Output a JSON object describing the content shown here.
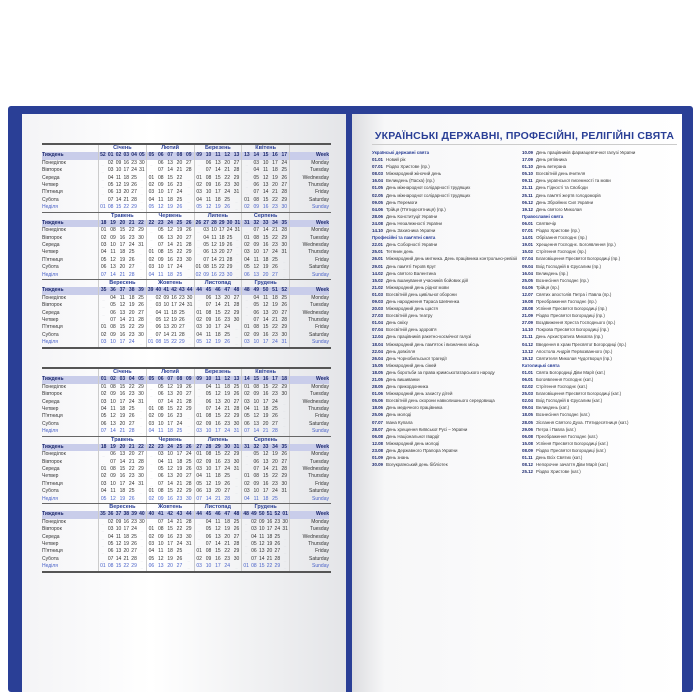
{
  "labels": {
    "week_ua": "Тиждень",
    "week_en": "Week",
    "days_ua": [
      "Понеділок",
      "Вівторок",
      "Середа",
      "Четвер",
      "П'ятниця",
      "Субота",
      "Неділя"
    ],
    "days_en": [
      "Monday",
      "Tuesday",
      "Wednesday",
      "Thursday",
      "Friday",
      "Saturday",
      "Sunday"
    ]
  },
  "colors": {
    "cover": "#2a3f96",
    "accent": "#2a3f96",
    "week_row": "#c9cdea",
    "sunday": "#4a62c8"
  },
  "calendars": [
    {
      "months": [
        {
          "name": "Січень",
          "weeks": "52 01 02 03 04 05",
          "rows": [
            "_ 02 09 16 23 30",
            "_ 03 10 17 24 31",
            "_ 04 11 18 25 _",
            "_ 05 12 19 26 _",
            "_ 06 13 20 27 _",
            "_ 07 14 21 28 _",
            "01 08 15 22 29 _"
          ]
        },
        {
          "name": "Лютий",
          "weeks": "05 06 07 08 09",
          "rows": [
            "_ 06 13 20 27",
            "_ 07 14 21 28",
            "01 08 15 22 _",
            "02 09 16 23 _",
            "03 10 17 24 _",
            "04 11 18 25 _",
            "05 12 19 26 _"
          ]
        },
        {
          "name": "Березень",
          "weeks": "09 10 11 12 13",
          "rows": [
            "_ 06 13 20 27",
            "_ 07 14 21 28",
            "01 08 15 22 29",
            "02 09 16 23 30",
            "03 10 17 24 31",
            "04 11 18 25 _",
            "05 12 19 26 _"
          ]
        },
        {
          "name": "Квітень",
          "weeks": "13 14 15 16 17",
          "rows": [
            "_ 03 10 17 24",
            "_ 04 11 18 25",
            "_ 05 12 19 26",
            "_ 06 13 20 27",
            "_ 07 14 21 28",
            "01 08 15 22 29",
            "02 09 16 23 30"
          ]
        },
        {
          "name": "Травень",
          "weeks": "18 19 20 21 22",
          "rows": [
            "01 08 15 22 29",
            "02 09 16 23 30",
            "03 10 17 24 31",
            "04 11 18 25 _",
            "05 12 19 26 _",
            "06 13 20 27 _",
            "07 14 21 28 _"
          ]
        },
        {
          "name": "Червень",
          "weeks": "22 23 24 25 26",
          "rows": [
            "_ 05 12 19 26",
            "_ 06 13 20 27",
            "_ 07 14 21 28",
            "01 08 15 22 29",
            "02 09 16 23 30",
            "03 10 17 24 _",
            "04 11 18 25 _"
          ]
        },
        {
          "name": "Липень",
          "weeks": "26 27 28 29 30 31",
          "rows": [
            "_ 03 10 17 24 31",
            "_ 04 11 18 25 _",
            "_ 05 12 19 26 _",
            "_ 06 13 20 27 _",
            "_ 07 14 21 28 _",
            "01 08 15 22 29 _",
            "02 09 16 23 30 _"
          ]
        },
        {
          "name": "Серпень",
          "weeks": "31 32 33 34 35",
          "rows": [
            "_ 07 14 21 28",
            "01 08 15 22 29",
            "02 09 16 23 30",
            "03 10 17 24 31",
            "04 11 18 25 _",
            "05 12 19 26 _",
            "06 13 20 27 _"
          ]
        },
        {
          "name": "Вересень",
          "weeks": "35 36 37 38 39",
          "rows": [
            "_ 04 11 18 25",
            "_ 05 12 19 26",
            "_ 06 13 20 27",
            "_ 07 14 21 28",
            "01 08 15 22 29",
            "02 09 16 23 30",
            "03 10 17 24 _"
          ]
        },
        {
          "name": "Жовтень",
          "weeks": "39 40 41 42 43 44",
          "rows": [
            "_ 02 09 16 23 30",
            "_ 03 10 17 24 31",
            "_ 04 11 18 25 _",
            "_ 05 12 19 26 _",
            "_ 06 13 20 27 _",
            "_ 07 14 21 28 _",
            "01 08 15 22 29 _"
          ]
        },
        {
          "name": "Листопад",
          "weeks": "44 45 46 47 48",
          "rows": [
            "_ 06 13 20 27",
            "_ 07 14 21 28",
            "01 08 15 22 29",
            "02 09 16 23 30",
            "03 10 17 24 _",
            "04 11 18 25 _",
            "05 12 19 26 _"
          ]
        },
        {
          "name": "Грудень",
          "weeks": "48 49 50 51 52",
          "rows": [
            "_ 04 11 18 25",
            "_ 05 12 19 26",
            "_ 06 13 20 27",
            "_ 07 14 21 28",
            "01 08 15 22 29",
            "02 09 16 23 30",
            "03 10 17 24 31"
          ]
        }
      ]
    },
    {
      "months": [
        {
          "name": "Січень",
          "weeks": "01 02 03 04 05",
          "rows": [
            "01 08 15 22 29",
            "02 09 16 23 30",
            "03 10 17 24 31",
            "04 11 18 25 _",
            "05 12 19 26 _",
            "06 13 20 27 _",
            "07 14 21 28 _"
          ]
        },
        {
          "name": "Лютий",
          "weeks": "05 06 07 08 09",
          "rows": [
            "_ 05 12 19 26",
            "_ 06 13 20 27",
            "_ 07 14 21 28",
            "01 08 15 22 29",
            "02 09 16 23 _",
            "03 10 17 24 _",
            "04 11 18 25 _"
          ]
        },
        {
          "name": "Березень",
          "weeks": "09 10 11 12 13",
          "rows": [
            "_ 04 11 18 25",
            "_ 05 12 19 26",
            "_ 06 13 20 27",
            "_ 07 14 21 28",
            "01 08 15 22 29",
            "02 09 16 23 30",
            "03 10 17 24 31"
          ]
        },
        {
          "name": "Квітень",
          "weeks": "14 15 16 17 18",
          "rows": [
            "01 08 15 22 29",
            "02 09 16 23 30",
            "03 10 17 24 _",
            "04 11 18 25 _",
            "05 12 19 26 _",
            "06 13 20 27 _",
            "07 14 21 28 _"
          ]
        },
        {
          "name": "Травень",
          "weeks": "18 19 20 21 22",
          "rows": [
            "_ 06 13 20 27",
            "_ 07 14 21 28",
            "01 08 15 22 29",
            "02 09 16 23 30",
            "03 10 17 24 31",
            "04 11 18 25 _",
            "05 12 19 26 _"
          ]
        },
        {
          "name": "Червень",
          "weeks": "22 23 24 25 26",
          "rows": [
            "_ 03 10 17 24",
            "_ 04 11 18 25",
            "_ 05 12 19 26",
            "_ 06 13 20 27",
            "_ 07 14 21 28",
            "01 08 15 22 29",
            "02 09 16 23 30"
          ]
        },
        {
          "name": "Липень",
          "weeks": "27 28 29 30 31",
          "rows": [
            "01 08 15 22 29",
            "02 09 16 23 30",
            "03 10 17 24 31",
            "04 11 18 25 _",
            "05 12 19 26 _",
            "06 13 20 27 _",
            "07 14 21 28 _"
          ]
        },
        {
          "name": "Серпень",
          "weeks": "31 32 33 34 35",
          "rows": [
            "_ 05 12 19 26",
            "_ 06 13 20 27",
            "_ 07 14 21 28",
            "01 08 15 22 29",
            "02 09 16 23 30",
            "03 10 17 24 31",
            "04 11 18 25 _"
          ]
        },
        {
          "name": "Вересень",
          "weeks": "35 36 37 38 39 40",
          "rows": [
            "_ 02 09 16 23 30",
            "_ 03 10 17 24 _",
            "_ 04 11 18 25 _",
            "_ 05 12 19 26 _",
            "_ 06 13 20 27 _",
            "_ 07 14 21 28 _",
            "01 08 15 22 29 _"
          ]
        },
        {
          "name": "Жовтень",
          "weeks": "40 41 42 43 44",
          "rows": [
            "_ 07 14 21 28",
            "01 08 15 22 29",
            "02 09 16 23 30",
            "03 10 17 24 31",
            "04 11 18 25 _",
            "05 12 19 26 _",
            "06 13 20 27 _"
          ]
        },
        {
          "name": "Листопад",
          "weeks": "44 45 46 47 48",
          "rows": [
            "_ 04 11 18 25",
            "_ 05 12 19 26",
            "_ 06 13 20 27",
            "_ 07 14 21 28",
            "01 08 15 22 29",
            "02 09 16 23 30",
            "03 10 17 24 _"
          ]
        },
        {
          "name": "Грудень",
          "weeks": "48 49 50 51 52 01",
          "rows": [
            "_ 02 09 16 23 30",
            "_ 03 10 17 24 31",
            "_ 04 11 18 25 _",
            "_ 05 12 19 26 _",
            "_ 06 13 20 27 _",
            "_ 07 14 21 28 _",
            "01 08 15 22 29 _"
          ]
        }
      ]
    }
  ],
  "holidays": {
    "title": "УКРАЇНСЬКІ ДЕРЖАВНІ, ПРОФЕСІЙНІ, РЕЛІГІЙНІ СВЯТА",
    "columns": [
      [
        {
          "section": "Українські державні свята"
        },
        {
          "d": "01.01",
          "t": "Новий рік"
        },
        {
          "d": "07.01",
          "t": "Різдво Христове (пр.)"
        },
        {
          "d": "08.03",
          "t": "Міжнародний жіночий день"
        },
        {
          "d": "16.04",
          "t": "Великдень (Пасха) (пр.)"
        },
        {
          "d": "01.05",
          "t": "День міжнародної солідарності трудящих"
        },
        {
          "d": "02.05",
          "t": "День міжнародної солідарності трудящих"
        },
        {
          "d": "09.05",
          "t": "День Перемоги"
        },
        {
          "d": "04.06",
          "t": "Трійця (П'ятидесятниця) (пр.)"
        },
        {
          "d": "28.06",
          "t": "День Конституції України"
        },
        {
          "d": "24.08",
          "t": "День Незалежності України"
        },
        {
          "d": "14.10",
          "t": "День Захисника України"
        },
        {
          "section": "Професійні та пам'ятні свята"
        },
        {
          "d": "22.01",
          "t": "День Соборності України"
        },
        {
          "d": "25.01",
          "t": "Тетянин день"
        },
        {
          "d": "26.01",
          "t": "Міжнародний день митника. День працівника контрольно-ревізійної служби України"
        },
        {
          "d": "29.01",
          "t": "День пам'яті Героїв Крут"
        },
        {
          "d": "14.02",
          "t": "День святого Валентина"
        },
        {
          "d": "15.02",
          "t": "День вшанування учасників бойових дій"
        },
        {
          "d": "21.02",
          "t": "Міжнародний день рідної мови"
        },
        {
          "d": "01.03",
          "t": "Всесвітній день цивільної оборони"
        },
        {
          "d": "09.03",
          "t": "День народження Тараса Шевченка"
        },
        {
          "d": "20.03",
          "t": "Міжнародний день щастя"
        },
        {
          "d": "27.03",
          "t": "Всесвітній день театру"
        },
        {
          "d": "01.04",
          "t": "День сміху"
        },
        {
          "d": "07.04",
          "t": "Всесвітній день здоров'я"
        },
        {
          "d": "12.04",
          "t": "День працівників ракетно-космічної галузі"
        },
        {
          "d": "18.04",
          "t": "Міжнародний день пам'яток і визначних місць"
        },
        {
          "d": "22.04",
          "t": "День довкілля"
        },
        {
          "d": "26.04",
          "t": "День Чорнобильської трагедії"
        },
        {
          "d": "15.05",
          "t": "Міжнародний день сімей"
        },
        {
          "d": "18.05",
          "t": "День боротьби за права кримськотатарського народу"
        },
        {
          "d": "21.05",
          "t": "День вишиванки"
        },
        {
          "d": "28.05",
          "t": "День прикордонника"
        },
        {
          "d": "01.06",
          "t": "Міжнародний день захисту дітей"
        },
        {
          "d": "05.06",
          "t": "Всесвітній день охорони навколишнього середовища"
        },
        {
          "d": "18.06",
          "t": "День медичного працівника"
        },
        {
          "d": "25.06",
          "t": "День молоді"
        },
        {
          "d": "07.07",
          "t": "Івана Купала"
        },
        {
          "d": "28.07",
          "t": "День хрещення Київської Русі – України"
        },
        {
          "d": "06.08",
          "t": "День Національної гвардії"
        },
        {
          "d": "12.08",
          "t": "Міжнародний день молоді"
        },
        {
          "d": "23.08",
          "t": "День Державного Прапора України"
        },
        {
          "d": "01.09",
          "t": "День знань"
        },
        {
          "d": "30.09",
          "t": "Всеукраїнський день бібліотек"
        }
      ],
      [
        {
          "d": "10.09",
          "t": "День працівників фармацевтичної галузі України"
        },
        {
          "d": "17.09",
          "t": "День рятівника"
        },
        {
          "d": "01.10",
          "t": "День ветерана"
        },
        {
          "d": "05.10",
          "t": "Всесвітній день вчителя"
        },
        {
          "d": "09.11",
          "t": "День української писемності та мови"
        },
        {
          "d": "21.11",
          "t": "День Гідності та Свободи"
        },
        {
          "d": "25.11",
          "t": "День пам'яті жертв голодоморів"
        },
        {
          "d": "06.12",
          "t": "День Збройних Сил України"
        },
        {
          "d": "19.12",
          "t": "День святого Миколая"
        },
        {
          "section": "Православні свята"
        },
        {
          "d": "06.01",
          "t": "Святвечір"
        },
        {
          "d": "07.01",
          "t": "Різдво Христове (пр.)"
        },
        {
          "d": "14.01",
          "t": "Обрізання Господнє (пр.)"
        },
        {
          "d": "19.01",
          "t": "Хрещення Господнє. Богоявлення (пр.)"
        },
        {
          "d": "15.02",
          "t": "Стрітення Господнє (пр.)"
        },
        {
          "d": "07.04",
          "t": "Благовіщення Пресвятої Богородиці (пр.)"
        },
        {
          "d": "09.04",
          "t": "Вхід Господній в Єрусалим (пр.)"
        },
        {
          "d": "16.04",
          "t": "Великдень (пр.)"
        },
        {
          "d": "25.05",
          "t": "Вознесіння Господнє (пр.)"
        },
        {
          "d": "04.06",
          "t": "Трійця (пр.)"
        },
        {
          "d": "12.07",
          "t": "Святих апостолів Петра і Павла (пр.)"
        },
        {
          "d": "19.08",
          "t": "Преображення Господнє (пр.)"
        },
        {
          "d": "28.08",
          "t": "Успіння Пресвятої Богородиці (пр.)"
        },
        {
          "d": "21.09",
          "t": "Різдво Пресвятої Богородиці (пр.)"
        },
        {
          "d": "27.09",
          "t": "Воздвиження Хреста Господнього (пр.)"
        },
        {
          "d": "14.10",
          "t": "Покрова Пресвятої Богородиці (пр.)"
        },
        {
          "d": "21.11",
          "t": "День Архистратига Михаїла (пр.)"
        },
        {
          "d": "04.12",
          "t": "Введення в храм Пресвятої Богородиці (пр.)"
        },
        {
          "d": "13.12",
          "t": "Апостола Андрія Первозванного (пр.)"
        },
        {
          "d": "19.12",
          "t": "Святителя Миколая Чудотворця (пр.)"
        },
        {
          "section": "Католицькі свята"
        },
        {
          "d": "01.01",
          "t": "Свята Богородиці Діви Марії (кат.)"
        },
        {
          "d": "06.01",
          "t": "Богоявлення Господнє (кат.)"
        },
        {
          "d": "02.02",
          "t": "Стрітення Господнє (кат.)"
        },
        {
          "d": "25.03",
          "t": "Благовіщення Пресвятої Богородиці (кат.)"
        },
        {
          "d": "02.04",
          "t": "Вхід Господній в Єрусалим (кат.)"
        },
        {
          "d": "09.04",
          "t": "Великдень (кат.)"
        },
        {
          "d": "18.05",
          "t": "Вознесіння Господнє (кат.)"
        },
        {
          "d": "28.05",
          "t": "Зіслання Святого Духа. П'ятидесятниця (кат.)"
        },
        {
          "d": "29.06",
          "t": "Петра і Павла (кат.)"
        },
        {
          "d": "06.08",
          "t": "Преображення Господнє (кат.)"
        },
        {
          "d": "15.08",
          "t": "Успіння Пресвятої Богородиці (кат.)"
        },
        {
          "d": "08.09",
          "t": "Різдво Пресвятої Богородиці (кат.)"
        },
        {
          "d": "01.11",
          "t": "День Всіх Святих (кат.)"
        },
        {
          "d": "08.12",
          "t": "Непорочне зачаття Діви Марії (кат.)"
        },
        {
          "d": "25.12",
          "t": "Різдво Христове (кат.)"
        }
      ]
    ]
  }
}
